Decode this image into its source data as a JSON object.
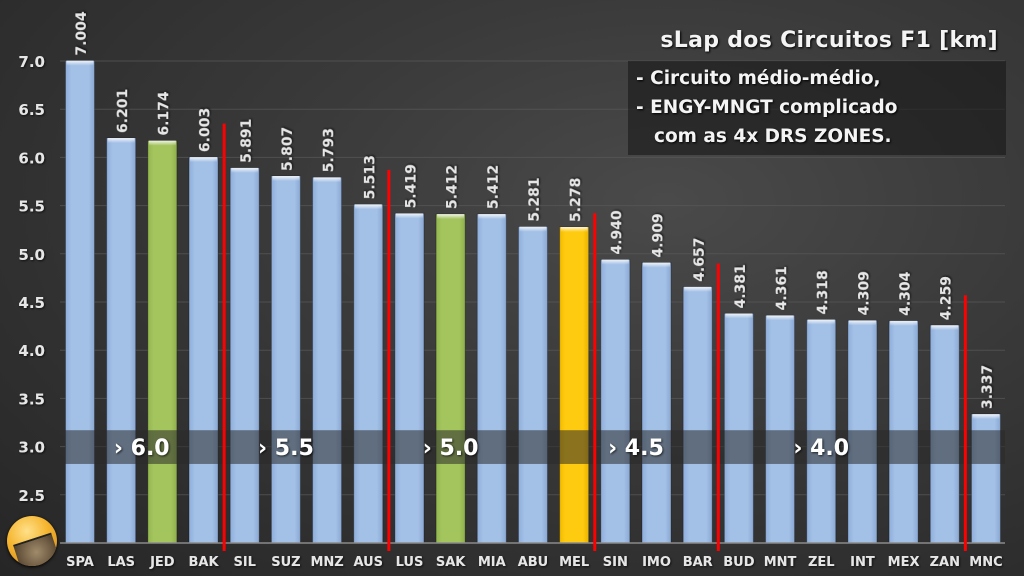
{
  "chart_data": {
    "type": "bar",
    "title": "sLap dos Circuitos F1 [km]",
    "notes": [
      "- Circuito médio-médio,",
      "- ENGY-MNGT complicado",
      "com as 4x DRS ZONES."
    ],
    "xlabel": "",
    "ylabel": "",
    "ylim": [
      2.0,
      7.0
    ],
    "yticks": [
      "2.5",
      "3.0",
      "3.5",
      "4.0",
      "4.5",
      "5.0",
      "5.5",
      "6.0",
      "6.5",
      "7.0"
    ],
    "ytick_values": [
      2.5,
      3.0,
      3.5,
      4.0,
      4.5,
      5.0,
      5.5,
      6.0,
      6.5,
      7.0
    ],
    "grid": true,
    "categories": [
      "SPA",
      "LAS",
      "JED",
      "BAK",
      "SIL",
      "SUZ",
      "MNZ",
      "AUS",
      "LUS",
      "SAK",
      "MIA",
      "ABU",
      "MEL",
      "SIN",
      "IMO",
      "BAR",
      "BUD",
      "MNT",
      "ZEL",
      "INT",
      "MEX",
      "ZAN",
      "MNC"
    ],
    "values": [
      7.004,
      6.201,
      6.174,
      6.003,
      5.891,
      5.807,
      5.793,
      5.513,
      5.419,
      5.412,
      5.412,
      5.281,
      5.278,
      4.94,
      4.909,
      4.657,
      4.381,
      4.361,
      4.318,
      4.309,
      4.304,
      4.259,
      3.337
    ],
    "data_labels": [
      "7.004",
      "6.201",
      "6.174",
      "6.003",
      "5.891",
      "5.807",
      "5.793",
      "5.513",
      "5.419",
      "5.412",
      "5.412",
      "5.281",
      "5.278",
      "4.940",
      "4.909",
      "4.657",
      "4.381",
      "4.361",
      "4.318",
      "4.309",
      "4.304",
      "4.259",
      "3.337"
    ],
    "colors": {
      "default": "#9dbbe3",
      "highlight_green": "#9fc15a",
      "highlight_yellow": "#ffc90e",
      "divider": "#ff0000",
      "band": "#2a2a2a"
    },
    "highlights": {
      "JED": "green",
      "SAK": "green",
      "MEL": "yellow"
    },
    "dividers": [
      {
        "after": "BAK",
        "top_value": 6.35
      },
      {
        "after": "AUS",
        "top_value": 5.87
      },
      {
        "after": "MEL",
        "top_value": 5.42
      },
      {
        "after": "BAR",
        "top_value": 4.9
      },
      {
        "after": "ZAN",
        "top_value": 4.57
      }
    ],
    "band_range": [
      2.82,
      3.17
    ],
    "band_labels": [
      {
        "text": "› 6.0",
        "center_between": [
          "LAS",
          "JED"
        ]
      },
      {
        "text": "› 5.5",
        "center_between": [
          "SUZ",
          "SUZ"
        ]
      },
      {
        "text": "› 5.0",
        "center_between": [
          "SAK",
          "SAK"
        ]
      },
      {
        "text": "› 4.5",
        "center_between": [
          "SIN",
          "IMO"
        ]
      },
      {
        "text": "› 4.0",
        "center_between": [
          "ZEL",
          "ZEL"
        ]
      }
    ]
  },
  "avatar_label": "avatar"
}
